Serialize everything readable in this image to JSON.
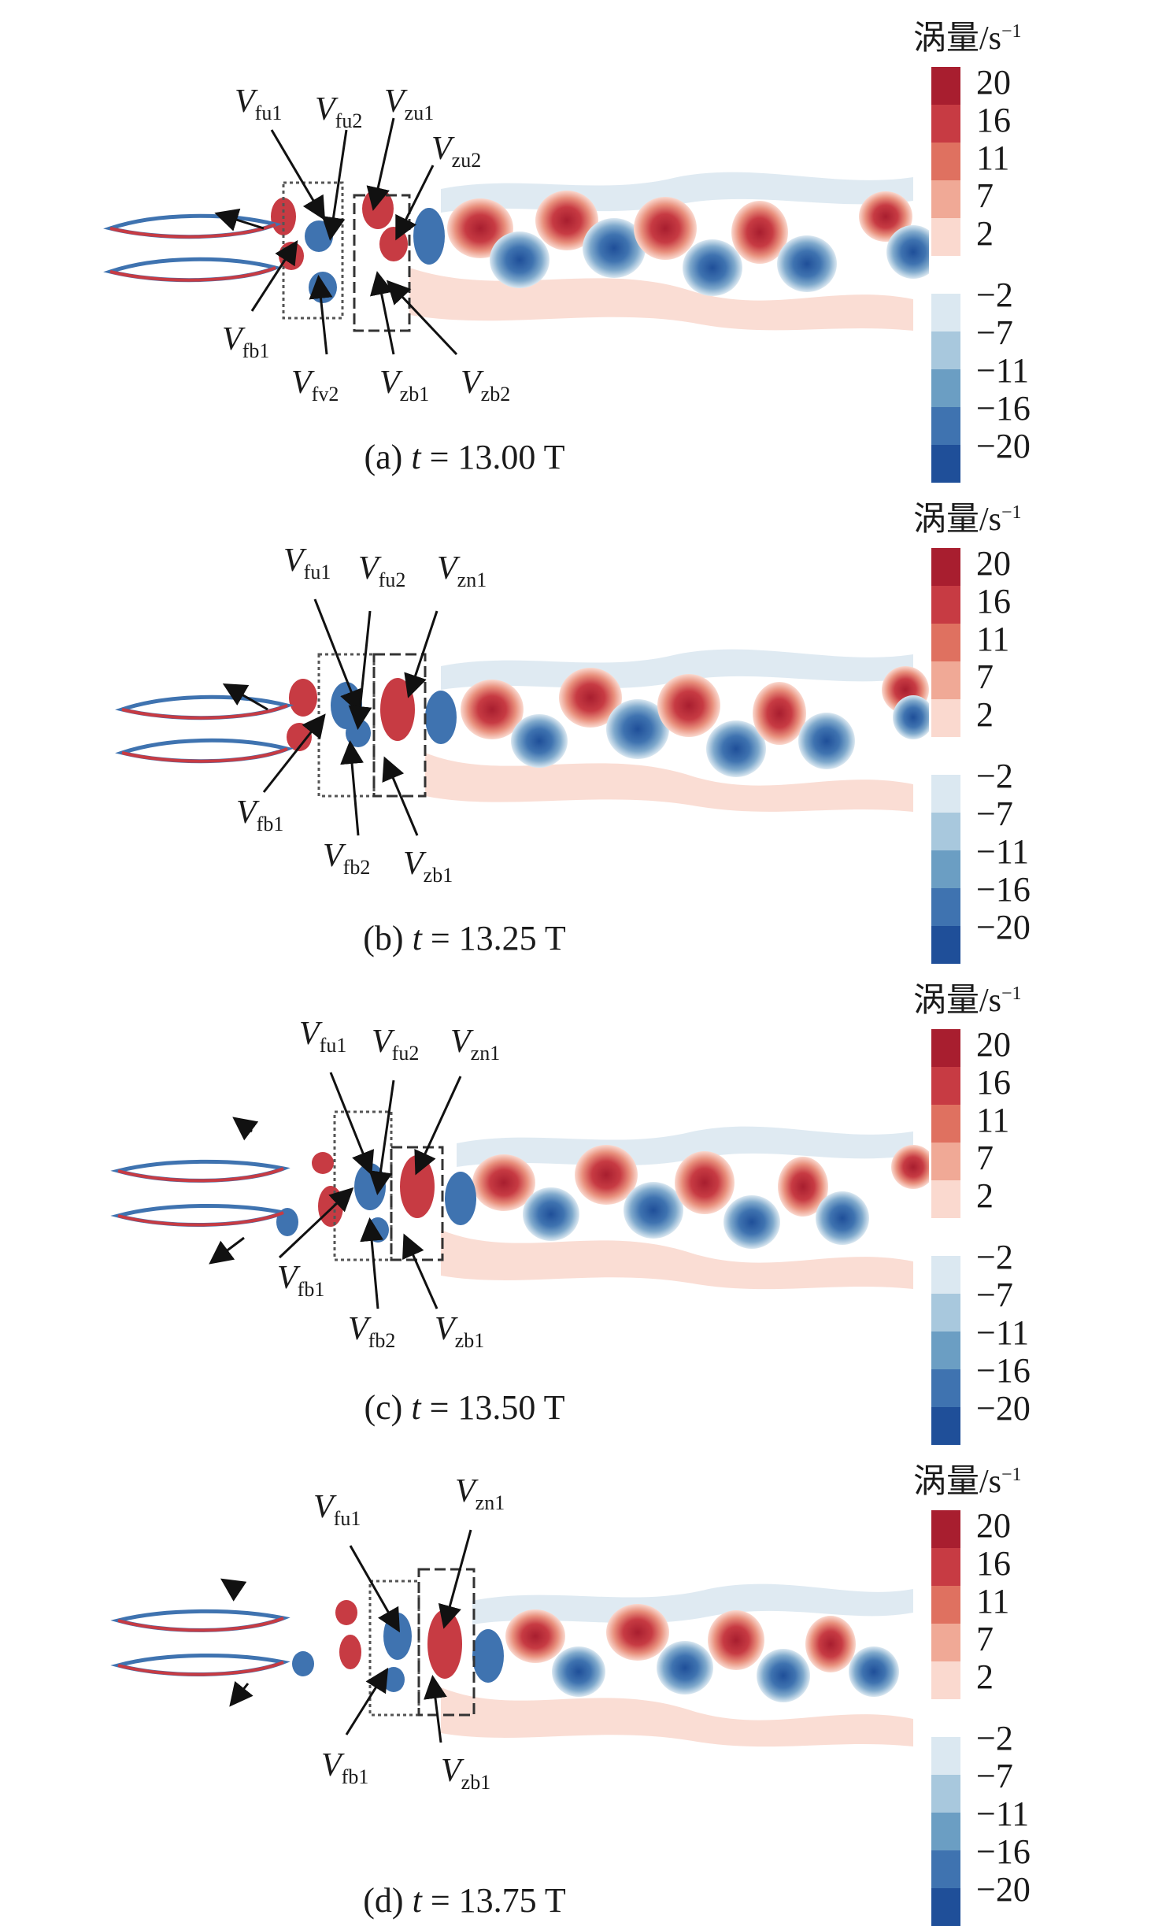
{
  "legend": {
    "title": "涡量/s",
    "title_exp": "−1",
    "ticks": [
      "20",
      "16",
      "11",
      "7",
      "2",
      "−2",
      "−7",
      "−11",
      "−16",
      "−20"
    ],
    "colors": [
      "#a81e2f",
      "#c73b43",
      "#df7160",
      "#f0a996",
      "#fad9cf",
      "#ffffff",
      "#dbe8f1",
      "#a8c8dd",
      "#6b9ec3",
      "#3f73b0",
      "#1f4f99"
    ]
  },
  "panels": [
    {
      "caption_pre": "(a) ",
      "caption_t": "t",
      "caption_post": " = 13.00 T",
      "labels": [
        {
          "v": "V",
          "s": "fu1"
        },
        {
          "v": "V",
          "s": "fu2"
        },
        {
          "v": "V",
          "s": "zu1"
        },
        {
          "v": "V",
          "s": "zu2"
        },
        {
          "v": "V",
          "s": "fb1"
        },
        {
          "v": "V",
          "s": "fv2"
        },
        {
          "v": "V",
          "s": "zb1"
        },
        {
          "v": "V",
          "s": "zb2"
        }
      ]
    },
    {
      "caption_pre": "(b) ",
      "caption_t": "t",
      "caption_post": " = 13.25 T",
      "labels": [
        {
          "v": "V",
          "s": "fu1"
        },
        {
          "v": "V",
          "s": "fu2"
        },
        {
          "v": "V",
          "s": "zn1"
        },
        {
          "v": "V",
          "s": "fb1"
        },
        {
          "v": "V",
          "s": "fb2"
        },
        {
          "v": "V",
          "s": "zb1"
        }
      ]
    },
    {
      "caption_pre": "(c) ",
      "caption_t": "t",
      "caption_post": " = 13.50 T",
      "labels": [
        {
          "v": "V",
          "s": "fu1"
        },
        {
          "v": "V",
          "s": "fu2"
        },
        {
          "v": "V",
          "s": "zn1"
        },
        {
          "v": "V",
          "s": "fb1"
        },
        {
          "v": "V",
          "s": "fb2"
        },
        {
          "v": "V",
          "s": "zb1"
        }
      ]
    },
    {
      "caption_pre": "(d) ",
      "caption_t": "t",
      "caption_post": " = 13.75 T",
      "labels": [
        {
          "v": "V",
          "s": "fu1"
        },
        {
          "v": "V",
          "s": "zn1"
        },
        {
          "v": "V",
          "s": "fb1"
        },
        {
          "v": "V",
          "s": "zb1"
        }
      ]
    }
  ]
}
